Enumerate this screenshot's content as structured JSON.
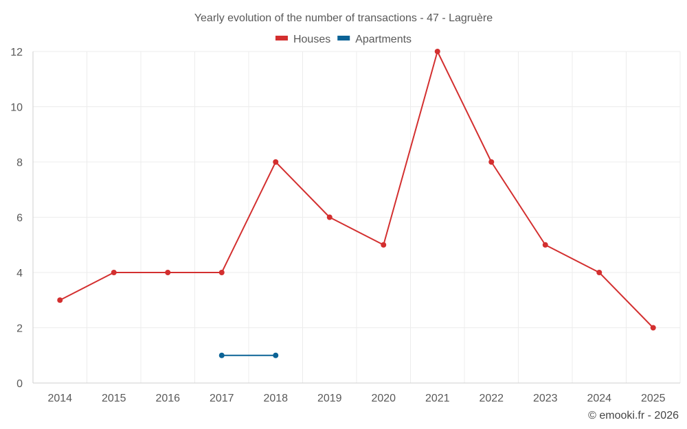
{
  "chart_data": {
    "type": "line",
    "title": "Yearly evolution of the number of transactions - 47 - Lagruère",
    "xlabel": "",
    "ylabel": "",
    "categories": [
      "2014",
      "2015",
      "2016",
      "2017",
      "2018",
      "2019",
      "2020",
      "2021",
      "2022",
      "2023",
      "2024",
      "2025"
    ],
    "ylim": [
      0,
      12
    ],
    "yticks": [
      0,
      2,
      4,
      6,
      8,
      10,
      12
    ],
    "grid": true,
    "legend_position": "top-center",
    "series": [
      {
        "name": "Houses",
        "color": "#d32f2f",
        "values": [
          3,
          4,
          4,
          4,
          8,
          6,
          5,
          12,
          8,
          5,
          4,
          2
        ]
      },
      {
        "name": "Apartments",
        "color": "#0b6396",
        "values": [
          null,
          null,
          null,
          1,
          1,
          null,
          null,
          null,
          null,
          null,
          null,
          null
        ]
      }
    ],
    "credit": "© emooki.fr - 2026"
  }
}
